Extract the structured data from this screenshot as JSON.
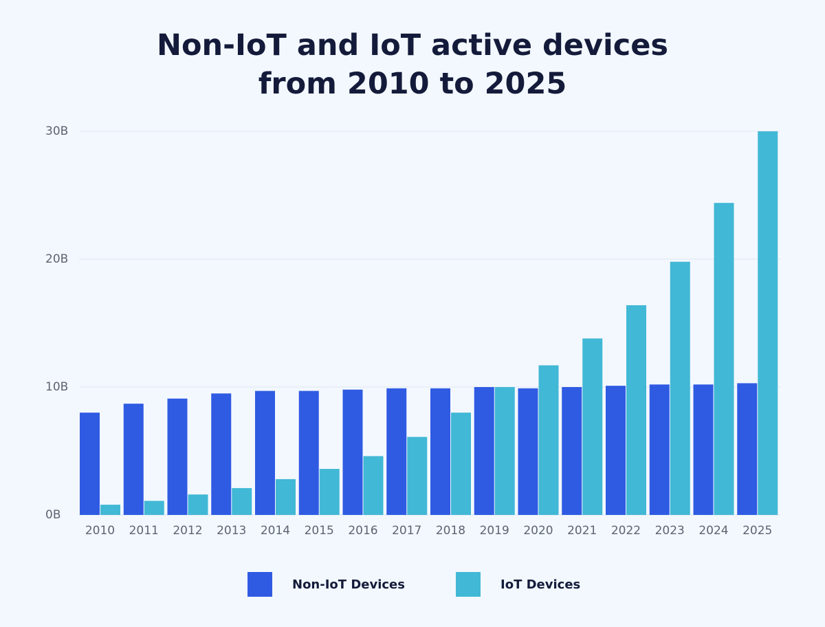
{
  "chart_data": {
    "type": "bar",
    "title": "Non-IoT and IoT active devices from 2010 to 2025",
    "categories": [
      "2010",
      "2011",
      "2012",
      "2013",
      "2014",
      "2015",
      "2016",
      "2017",
      "2018",
      "2019",
      "2020",
      "2021",
      "2022",
      "2023",
      "2024",
      "2025"
    ],
    "series": [
      {
        "name": "Non-IoT Devices",
        "color": "#2f5be3",
        "values": [
          8.0,
          8.7,
          9.1,
          9.5,
          9.7,
          9.7,
          9.8,
          9.9,
          9.9,
          10.0,
          9.9,
          10.0,
          10.1,
          10.2,
          10.2,
          10.3
        ]
      },
      {
        "name": "IoT Devices",
        "color": "#41b8d5",
        "values": [
          0.8,
          1.1,
          1.6,
          2.1,
          2.8,
          3.6,
          4.6,
          6.1,
          8.0,
          10.0,
          11.7,
          13.8,
          16.4,
          19.8,
          24.4,
          30.0
        ]
      }
    ],
    "ylim": [
      0,
      30
    ],
    "yticks": [
      {
        "value": 0,
        "label": "0B"
      },
      {
        "value": 10,
        "label": "10B"
      },
      {
        "value": 20,
        "label": "20B"
      },
      {
        "value": 30,
        "label": "30B"
      }
    ],
    "grid": true
  }
}
